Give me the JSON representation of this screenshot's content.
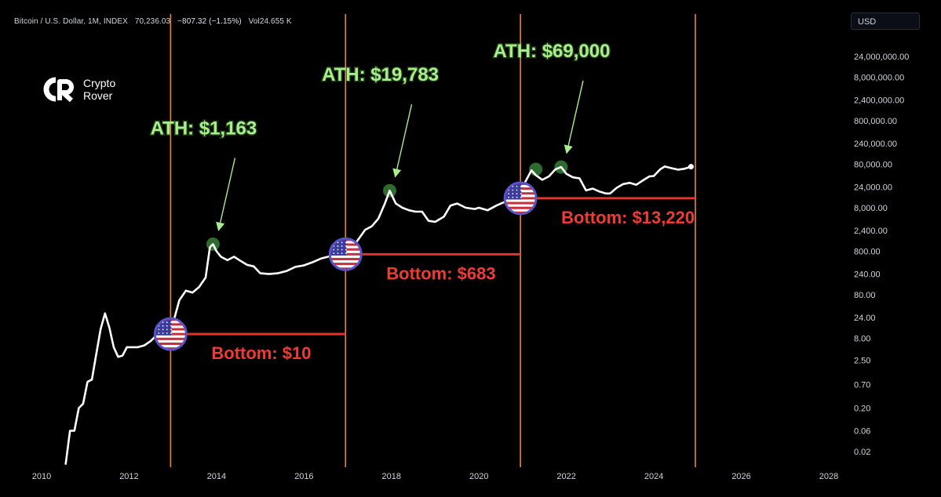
{
  "header": {
    "symbol": "Bitcoin / U.S. Dollar, 1M, INDEX",
    "price": "70,236.03",
    "change": "−807.32 (−1.15%)",
    "volume_label": "Vol",
    "volume": "24.655 K"
  },
  "currency_selector": {
    "value": "USD"
  },
  "logo": {
    "line1": "Crypto",
    "line2": "Rover"
  },
  "colors": {
    "background": "#000000",
    "price_line": "#ffffff",
    "halving_line": "#e8833a",
    "bottom_line": "#e8312a",
    "ath_text": "#a8ee8c",
    "bottom_text": "#ef3b33",
    "ath_marker": "#2e6b2e"
  },
  "chart_data": {
    "type": "line",
    "x_axis": {
      "range": [
        2010,
        2028
      ],
      "ticks": [
        "2010",
        "2012",
        "2014",
        "2016",
        "2018",
        "2020",
        "2022",
        "2024",
        "2026",
        "2028"
      ]
    },
    "y_axis": {
      "scale": "log",
      "currency": "USD",
      "ticks": [
        {
          "value": 24000000,
          "label": "24,000,000.00"
        },
        {
          "value": 8000000,
          "label": "8,000,000.00"
        },
        {
          "value": 2400000,
          "label": "2,400,000.00"
        },
        {
          "value": 800000,
          "label": "800,000.00"
        },
        {
          "value": 240000,
          "label": "240,000.00"
        },
        {
          "value": 80000,
          "label": "80,000.00"
        },
        {
          "value": 24000,
          "label": "24,000.00"
        },
        {
          "value": 8000,
          "label": "8,000.00"
        },
        {
          "value": 2400,
          "label": "2,400.00"
        },
        {
          "value": 800,
          "label": "800.00"
        },
        {
          "value": 240,
          "label": "240.00"
        },
        {
          "value": 80,
          "label": "80.00"
        },
        {
          "value": 24,
          "label": "24.00"
        },
        {
          "value": 8,
          "label": "8.00"
        },
        {
          "value": 2.5,
          "label": "2.50"
        },
        {
          "value": 0.7,
          "label": "0.70"
        },
        {
          "value": 0.2,
          "label": "0.20"
        },
        {
          "value": 0.06,
          "label": "0.06"
        },
        {
          "value": 0.02,
          "label": "0.02"
        }
      ]
    },
    "grid": false,
    "series": [
      {
        "x": [
          2010.55,
          2010.65,
          2010.75,
          2010.85,
          2010.95,
          2011.05,
          2011.15,
          2011.25,
          2011.35,
          2011.45,
          2011.55,
          2011.65,
          2011.75,
          2011.85,
          2011.95,
          2012.05,
          2012.2,
          2012.35,
          2012.5,
          2012.65,
          2012.8,
          2012.9,
          2013.0,
          2013.15,
          2013.3,
          2013.45,
          2013.6,
          2013.75,
          2013.85,
          2013.92,
          2014.0,
          2014.1,
          2014.25,
          2014.4,
          2014.55,
          2014.7,
          2014.85,
          2015.0,
          2015.2,
          2015.4,
          2015.6,
          2015.8,
          2016.0,
          2016.2,
          2016.4,
          2016.6,
          2016.8,
          2016.9,
          2017.0,
          2017.2,
          2017.4,
          2017.55,
          2017.7,
          2017.85,
          2017.96,
          2018.1,
          2018.25,
          2018.4,
          2018.55,
          2018.7,
          2018.85,
          2019.0,
          2019.2,
          2019.35,
          2019.5,
          2019.7,
          2019.9,
          2020.0,
          2020.2,
          2020.4,
          2020.6,
          2020.75,
          2020.85,
          2020.95,
          2021.05,
          2021.2,
          2021.3,
          2021.45,
          2021.6,
          2021.75,
          2021.88,
          2022.0,
          2022.15,
          2022.3,
          2022.45,
          2022.6,
          2022.75,
          2022.9,
          2023.0,
          2023.15,
          2023.3,
          2023.45,
          2023.6,
          2023.75,
          2023.9,
          2024.0,
          2024.15,
          2024.25,
          2024.4,
          2024.55,
          2024.7,
          2024.85
        ],
        "y": [
          0.01,
          0.06,
          0.06,
          0.2,
          0.25,
          0.8,
          0.9,
          3.5,
          13,
          30,
          14,
          5,
          3,
          3.2,
          5,
          5,
          5,
          5.5,
          7,
          10,
          12,
          13,
          17,
          60,
          100,
          90,
          120,
          200,
          1000,
          1163,
          800,
          600,
          500,
          600,
          480,
          390,
          360,
          250,
          240,
          250,
          280,
          350,
          380,
          450,
          550,
          620,
          700,
          750,
          900,
          1300,
          2500,
          3000,
          4500,
          10000,
          19783,
          10000,
          8000,
          7000,
          6500,
          6500,
          4000,
          3800,
          5000,
          9000,
          10000,
          8000,
          7500,
          8000,
          7000,
          9000,
          11000,
          13220,
          15000,
          19000,
          30000,
          58000,
          45000,
          35000,
          42000,
          61000,
          69000,
          48000,
          40000,
          38000,
          20000,
          22000,
          19000,
          17000,
          17000,
          23000,
          28000,
          30000,
          27000,
          34000,
          42000,
          43000,
          62000,
          71000,
          65000,
          60000,
          63000,
          70236
        ]
      }
    ],
    "halving_lines_x": [
      2012.95,
      2016.95,
      2020.95,
      2024.95
    ],
    "annotations": [
      {
        "text": "ATH: $1,163",
        "x": 2013.92,
        "y": 1163,
        "kind": "ath"
      },
      {
        "text": "ATH: $19,783",
        "x": 2017.96,
        "y": 19783,
        "kind": "ath"
      },
      {
        "text": "ATH: $69,000",
        "x": 2021.88,
        "y": 69000,
        "kind": "ath"
      },
      {
        "text": "Bottom: $10",
        "x": 2012.95,
        "y": 10,
        "kind": "bottom",
        "line_to_x": 2016.95
      },
      {
        "text": "Bottom: $683",
        "x": 2016.95,
        "y": 683,
        "kind": "bottom",
        "line_to_x": 2020.95
      },
      {
        "text": "Bottom: $13,220",
        "x": 2020.95,
        "y": 13220,
        "kind": "bottom",
        "line_to_x": 2024.95
      }
    ],
    "extra_ath_marker": {
      "x": 2021.3,
      "y": 61000
    },
    "flag_icons": [
      {
        "x": 2012.95,
        "y": 10,
        "icon": "us-flag-icon"
      },
      {
        "x": 2016.95,
        "y": 683,
        "icon": "us-flag-icon"
      },
      {
        "x": 2020.95,
        "y": 13220,
        "icon": "us-flag-icon"
      }
    ]
  }
}
